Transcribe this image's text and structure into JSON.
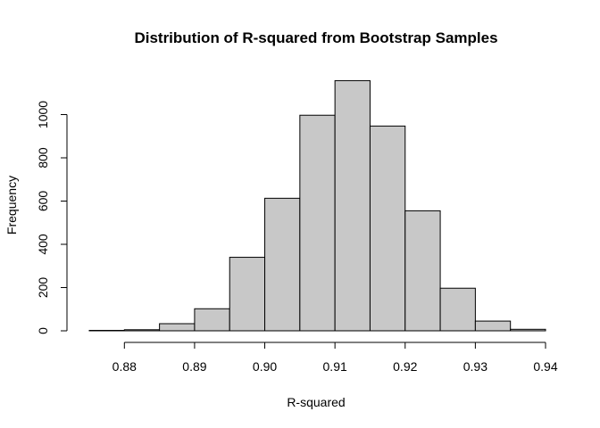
{
  "chart_data": {
    "type": "bar",
    "title": "Distribution of R-squared from Bootstrap Samples",
    "xlabel": "R-squared",
    "ylabel": "Frequency",
    "bin_edges": [
      0.875,
      0.88,
      0.885,
      0.89,
      0.895,
      0.9,
      0.905,
      0.91,
      0.915,
      0.92,
      0.925,
      0.93,
      0.935,
      0.94
    ],
    "values": [
      2,
      5,
      33,
      102,
      340,
      613,
      997,
      1157,
      947,
      555,
      197,
      45,
      7
    ],
    "xlim": [
      0.875,
      0.94
    ],
    "ylim": [
      0,
      1200
    ],
    "x_ticks": [
      0.88,
      0.89,
      0.9,
      0.91,
      0.92,
      0.93,
      0.94
    ],
    "x_tick_labels": [
      "0.88",
      "0.89",
      "0.90",
      "0.91",
      "0.92",
      "0.93",
      "0.94"
    ],
    "y_ticks": [
      0,
      200,
      400,
      600,
      800,
      1000
    ],
    "y_tick_labels": [
      "0",
      "200",
      "400",
      "600",
      "800",
      "1000"
    ],
    "bar_color": "#c8c8c8",
    "grid": false,
    "legend": "none"
  }
}
